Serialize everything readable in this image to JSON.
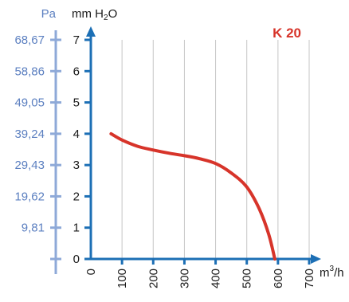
{
  "chart_data": {
    "type": "line",
    "model_label": "K 20",
    "x_unit": "m³/h",
    "x_unit_base": "m",
    "x_unit_sup": "3",
    "x_unit_tail": "/h",
    "y_unit_mm": "mm H₂O",
    "y_unit_mm_pre": "mm H",
    "y_unit_mm_sub": "2",
    "y_unit_mm_post": "O",
    "y_unit_pa": "Pa",
    "x_ticks": [
      "0",
      "100",
      "200",
      "300",
      "400",
      "500",
      "600",
      "700"
    ],
    "x_tick_values": [
      0,
      100,
      200,
      300,
      400,
      500,
      600,
      700
    ],
    "y_ticks_mm": [
      "0",
      "1",
      "2",
      "3",
      "4",
      "5",
      "6",
      "7"
    ],
    "y_ticks_pa": [
      "9,81",
      "19,62",
      "29,43",
      "39,24",
      "49,05",
      "58,86",
      "68,67"
    ],
    "xlim": [
      0,
      700
    ],
    "ylim": [
      0,
      7
    ],
    "grid": true,
    "series": [
      {
        "x": [
          65,
          100,
          150,
          200,
          250,
          300,
          350,
          400,
          450,
          500,
          540,
          570,
          590
        ],
        "y": [
          4.0,
          3.8,
          3.6,
          3.48,
          3.38,
          3.3,
          3.2,
          3.05,
          2.75,
          2.3,
          1.6,
          0.8,
          0.0
        ]
      }
    ],
    "colors": {
      "curve": "#d7342a",
      "axis": "#1c6fb5",
      "pa_axis": "#8ea9d8",
      "pa_text": "#5b7fc0",
      "grid": "#c6c6c6",
      "model": "#d7342a"
    }
  }
}
